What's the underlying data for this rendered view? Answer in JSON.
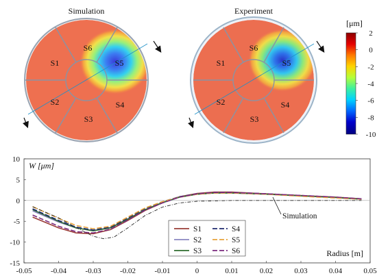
{
  "chart_data": [
    {
      "type": "heatmap",
      "title": "Simulation",
      "segments": [
        "S1",
        "S2",
        "S3",
        "S4",
        "S5",
        "S6"
      ]
    },
    {
      "type": "heatmap",
      "title": "Experiment",
      "segments": [
        "S1",
        "S2",
        "S3",
        "S4",
        "S5",
        "S6"
      ]
    },
    {
      "type": "colorbar",
      "unit": "[μm]",
      "range": [
        -10,
        2
      ],
      "ticks": [
        2,
        0,
        -2,
        -4,
        -6,
        -8,
        -10
      ],
      "colors": [
        "#8b0000",
        "#e60000",
        "#ff7a00",
        "#ffd400",
        "#b5ff3a",
        "#3df0a0",
        "#00d2ff",
        "#0068ff",
        "#0000cc",
        "#00007f"
      ]
    },
    {
      "type": "line",
      "ylabel": "W [μm]",
      "xlabel": "Radius [m]",
      "xlim": [
        -0.05,
        0.05
      ],
      "ylim": [
        -15,
        10
      ],
      "xticks": [
        -0.05,
        -0.04,
        -0.03,
        -0.02,
        -0.01,
        0,
        0.01,
        0.02,
        0.03,
        0.04,
        0.05
      ],
      "xtick_labels": [
        "-0.05",
        "-0.04",
        "-0.03",
        "-0.02",
        "-0.01",
        "0",
        "0.01",
        "0.02",
        "0.03",
        "0.04",
        "0.05"
      ],
      "yticks": [
        10,
        5,
        0,
        -5,
        -10,
        -15
      ],
      "ytick_labels": [
        "10",
        "5",
        "0",
        "-5",
        "-10",
        "-15"
      ],
      "annotation": "Simulation",
      "series": [
        {
          "name": "S1",
          "color": "#9a3b36",
          "dash": "solid",
          "x": [
            -0.0475,
            -0.04,
            -0.035,
            -0.03,
            -0.025,
            -0.02,
            -0.015,
            -0.01,
            -0.005,
            0,
            0.005,
            0.01,
            0.02,
            0.03,
            0.04,
            0.0475
          ],
          "y": [
            -4.0,
            -6.6,
            -7.8,
            -8.0,
            -7.0,
            -4.8,
            -2.4,
            -0.6,
            0.9,
            1.7,
            2.0,
            2.0,
            1.6,
            1.2,
            0.8,
            0.4
          ]
        },
        {
          "name": "S2",
          "color": "#8a86c0",
          "dash": "solid",
          "x": [
            -0.0475,
            -0.04,
            -0.035,
            -0.03,
            -0.025,
            -0.02,
            -0.015,
            -0.01,
            -0.005,
            0,
            0.005,
            0.01,
            0.02,
            0.03,
            0.04,
            0.0475
          ],
          "y": [
            -2.5,
            -5.2,
            -6.6,
            -7.2,
            -6.5,
            -4.4,
            -2.2,
            -0.6,
            0.8,
            1.5,
            1.8,
            1.8,
            1.5,
            1.1,
            0.7,
            0.3
          ]
        },
        {
          "name": "S3",
          "color": "#2e6b2e",
          "dash": "solid",
          "x": [
            -0.0475,
            -0.04,
            -0.035,
            -0.03,
            -0.025,
            -0.02,
            -0.015,
            -0.01,
            -0.005,
            0,
            0.005,
            0.01,
            0.02,
            0.03,
            0.04,
            0.0475
          ],
          "y": [
            -2.2,
            -5.0,
            -6.6,
            -7.3,
            -6.6,
            -4.5,
            -2.2,
            -0.5,
            0.8,
            1.5,
            1.8,
            1.8,
            1.5,
            1.1,
            0.7,
            0.3
          ]
        },
        {
          "name": "S4",
          "color": "#1e2a6e",
          "dash": "long",
          "x": [
            -0.0475,
            -0.04,
            -0.035,
            -0.03,
            -0.025,
            -0.02,
            -0.015,
            -0.01,
            -0.005,
            0,
            0.005,
            0.01,
            0.02,
            0.03,
            0.04,
            0.0475
          ],
          "y": [
            -2.0,
            -4.8,
            -6.4,
            -7.1,
            -6.4,
            -4.2,
            -1.9,
            -0.3,
            0.9,
            1.6,
            1.9,
            1.9,
            1.6,
            1.1,
            0.7,
            0.3
          ]
        },
        {
          "name": "S5",
          "color": "#e8a33a",
          "dash": "long",
          "x": [
            -0.0475,
            -0.04,
            -0.035,
            -0.03,
            -0.025,
            -0.02,
            -0.015,
            -0.01,
            -0.005,
            0,
            0.005,
            0.01,
            0.02,
            0.03,
            0.04,
            0.0475
          ],
          "y": [
            -1.5,
            -4.3,
            -6.0,
            -6.8,
            -6.2,
            -4.0,
            -1.8,
            -0.3,
            0.8,
            1.5,
            1.8,
            1.8,
            1.5,
            1.0,
            0.6,
            0.3
          ]
        },
        {
          "name": "S6",
          "color": "#7a2a7e",
          "dash": "long",
          "x": [
            -0.0475,
            -0.04,
            -0.035,
            -0.03,
            -0.025,
            -0.02,
            -0.015,
            -0.01,
            -0.005,
            0,
            0.005,
            0.01,
            0.02,
            0.03,
            0.04,
            0.0475
          ],
          "y": [
            -3.5,
            -6.2,
            -7.5,
            -7.8,
            -6.9,
            -4.7,
            -2.3,
            -0.6,
            0.8,
            1.6,
            1.9,
            1.9,
            1.6,
            1.2,
            0.8,
            0.4
          ]
        },
        {
          "name": "Simulation",
          "color": "#222222",
          "dash": "dashdot",
          "x": [
            -0.0475,
            -0.04,
            -0.035,
            -0.03,
            -0.027,
            -0.024,
            -0.02,
            -0.015,
            -0.01,
            -0.005,
            0,
            0.01,
            0.02,
            0.03,
            0.04,
            0.0475
          ],
          "y": [
            -1.5,
            -4.2,
            -6.5,
            -8.6,
            -9.2,
            -8.8,
            -6.6,
            -3.6,
            -1.6,
            -0.6,
            -0.2,
            0.0,
            0.0,
            0.0,
            0.0,
            0.0
          ]
        }
      ],
      "legend": [
        {
          "label": "S1",
          "series": 0
        },
        {
          "label": "S4",
          "series": 3
        },
        {
          "label": "S2",
          "series": 1
        },
        {
          "label": "S5",
          "series": 4
        },
        {
          "label": "S3",
          "series": 2
        },
        {
          "label": "S6",
          "series": 5
        }
      ]
    }
  ]
}
